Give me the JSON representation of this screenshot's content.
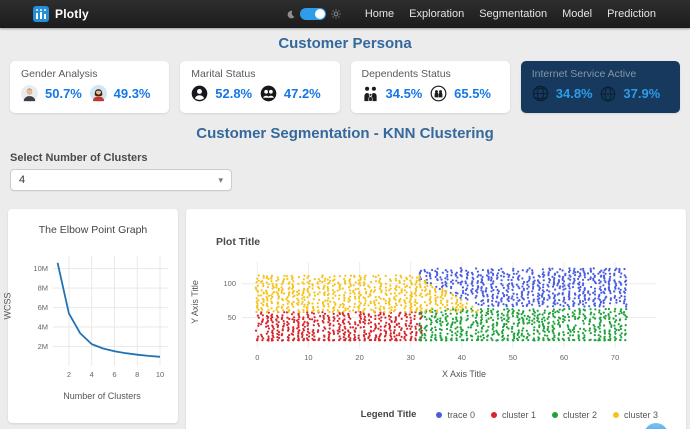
{
  "navbar": {
    "brand": "Plotly",
    "links": [
      "Home",
      "Exploration",
      "Segmentation",
      "Model",
      "Prediction"
    ],
    "theme_toggle_state": "on"
  },
  "titles": {
    "page": "Customer Persona",
    "section": "Customer Segmentation - KNN Clustering"
  },
  "cards": [
    {
      "title": "Gender Analysis",
      "highlighted": false,
      "stats": [
        {
          "icon": "male-icon",
          "value": "50.7%"
        },
        {
          "icon": "female-icon",
          "value": "49.3%"
        }
      ]
    },
    {
      "title": "Marital Status",
      "highlighted": false,
      "stats": [
        {
          "icon": "single-person-icon",
          "value": "52.8%"
        },
        {
          "icon": "couple-icon",
          "value": "47.2%"
        }
      ]
    },
    {
      "title": "Dependents Status",
      "highlighted": false,
      "stats": [
        {
          "icon": "family-icon",
          "value": "34.5%"
        },
        {
          "icon": "family-circle-icon",
          "value": "65.5%"
        }
      ]
    },
    {
      "title": "Internet Service Active",
      "highlighted": true,
      "stats": [
        {
          "icon": "globe-icon",
          "value": "34.8%"
        },
        {
          "icon": "globe-icon",
          "value": "37.9%"
        }
      ]
    }
  ],
  "cluster_select": {
    "label": "Select Number of Clusters",
    "value": "4"
  },
  "colors": {
    "accent_blue": "#1677e6",
    "heading_blue": "#35689c",
    "highlight_card_bg": "#16395d",
    "highlight_card_value": "#2e9ce8"
  },
  "chart_data": [
    {
      "type": "line",
      "title": "The Elbow Point Graph",
      "xlabel": "Number of Clusters",
      "ylabel": "WCSS",
      "x": [
        1,
        2,
        3,
        4,
        5,
        6,
        7,
        8,
        9,
        10
      ],
      "y": [
        10600000,
        5400000,
        3350000,
        2250000,
        1800000,
        1520000,
        1320000,
        1160000,
        1040000,
        950000
      ],
      "xticks": [
        2,
        4,
        6,
        8,
        10
      ],
      "yticks": [
        [
          2000000,
          "2M"
        ],
        [
          4000000,
          "4M"
        ],
        [
          6000000,
          "6M"
        ],
        [
          8000000,
          "8M"
        ],
        [
          10000000,
          "10M"
        ]
      ],
      "xlim": [
        0.6,
        10.7
      ],
      "ylim": [
        0,
        11300000
      ],
      "line_color": "#2272b4",
      "grid": true,
      "legend": "none"
    },
    {
      "type": "scatter",
      "title": "Plot Title",
      "xlabel": "X Axis Title",
      "ylabel": "Y Axis Title",
      "legend_title": "Legend Title",
      "legend_position": "bottom-right",
      "xticks": [
        0,
        10,
        20,
        30,
        40,
        50,
        60,
        70
      ],
      "yticks": [
        [
          50,
          "50"
        ],
        [
          100,
          "100"
        ]
      ],
      "xlim": [
        -3,
        78
      ],
      "ylim": [
        5,
        132
      ],
      "grid": true,
      "point_radius": 1.1,
      "series": [
        {
          "name": "trace 0",
          "color": "#4a5de0",
          "x_min": 32,
          "x_max": 72,
          "y_min": 66,
          "y_max": 122,
          "fill": 0.7,
          "taper": {
            "edge": "min",
            "from_x": 32,
            "to_x": 44,
            "from_y": 104,
            "to_y": 66
          }
        },
        {
          "name": "cluster 1",
          "color": "#d7252b",
          "x_min": 0,
          "x_max": 32,
          "y_min": 16,
          "y_max": 57,
          "fill": 0.7,
          "dense_bottom": true
        },
        {
          "name": "cluster 2",
          "color": "#1fa23a",
          "x_min": 32,
          "x_max": 72,
          "y_min": 16,
          "y_max": 62,
          "fill": 0.65,
          "dense_bottom": true
        },
        {
          "name": "cluster 3",
          "color": "#f6c31c",
          "x_min": 0,
          "x_max": 43,
          "y_min": 58,
          "y_max": 112,
          "fill": 0.7,
          "taper": {
            "edge": "max",
            "from_x": 32,
            "to_x": 43,
            "from_y": 112,
            "to_y": 62
          }
        }
      ]
    }
  ]
}
